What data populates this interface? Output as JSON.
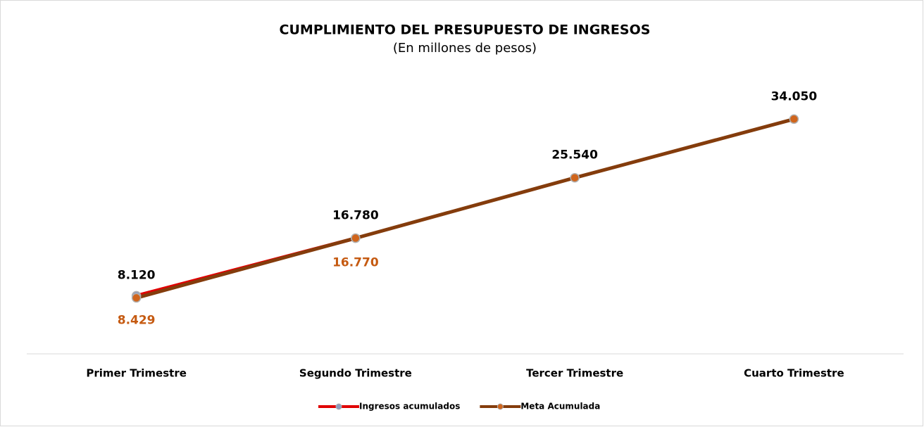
{
  "chart_data": {
    "type": "line",
    "title": "CUMPLIMIENTO DEL PRESUPUESTO DE INGRESOS",
    "subtitle": "(En millones de pesos)",
    "categories": [
      "Primer Trimestre",
      "Segundo Trimestre",
      "Tercer Trimestre",
      "Cuarto Trimestre"
    ],
    "series": [
      {
        "name": "Ingresos acumulados",
        "color": "#e00000",
        "marker_color": "#8e9bbd",
        "label_color": "#c55a11",
        "values": [
          8429,
          16770,
          null,
          null
        ],
        "value_labels": [
          "8.429",
          "16.770",
          null,
          null
        ]
      },
      {
        "name": "Meta Acumulada",
        "color": "#843c0c",
        "marker_color": "#d0651c",
        "label_color": "#000000",
        "values": [
          8120,
          16780,
          25540,
          34050
        ],
        "value_labels": [
          "8.120",
          "16.780",
          "25.540",
          "34.050"
        ]
      }
    ],
    "ylim": [
      0,
      40000
    ],
    "legend": "bottom"
  }
}
